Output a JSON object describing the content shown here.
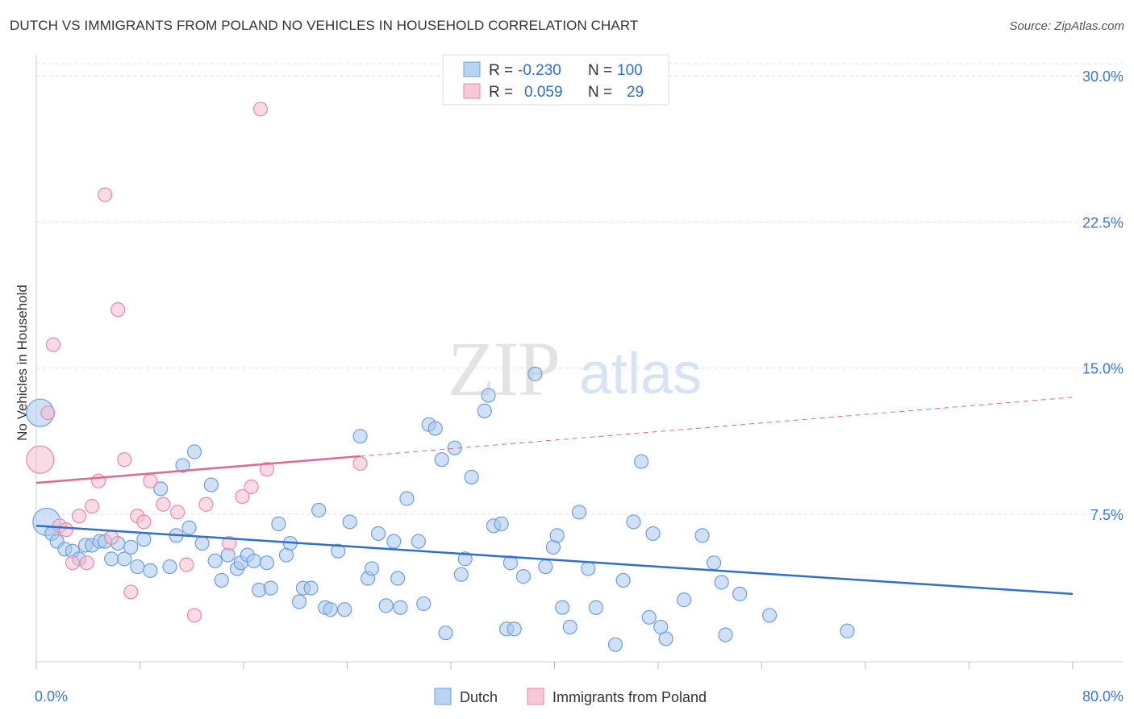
{
  "header": {
    "title": "DUTCH VS IMMIGRANTS FROM POLAND NO VEHICLES IN HOUSEHOLD CORRELATION CHART",
    "source": "Source: ZipAtlas.com"
  },
  "watermark": {
    "zip": "ZIP",
    "atlas": "atlas"
  },
  "legend_top": {
    "rows": [
      {
        "r_label": "R =",
        "r_value": "-0.230",
        "n_label": "N =",
        "n_value": "100"
      },
      {
        "r_label": "R =",
        "r_value": "0.059",
        "n_label": "N =",
        "n_value": "29"
      }
    ]
  },
  "legend_bottom": {
    "items": [
      "Dutch",
      "Immigrants from Poland"
    ]
  },
  "colors": {
    "dutch_fill": "#a9c8f0",
    "dutch_stroke": "#6e9fe0",
    "dutch_line": "#2f6fcc",
    "poland_fill": "#f6bccd",
    "poland_stroke": "#e98aa8",
    "poland_line": "#e0678f",
    "tick_text": "#3b78d0",
    "grid": "#dddddd"
  },
  "chart_data": {
    "type": "scatter",
    "title": "DUTCH VS IMMIGRANTS FROM POLAND NO VEHICLES IN HOUSEHOLD CORRELATION CHART",
    "xlabel": "",
    "ylabel": "No Vehicles in Household",
    "xlim": [
      0,
      80
    ],
    "ylim": [
      0,
      31.5
    ],
    "x_tick_labels": [
      "0.0%",
      "80.0%"
    ],
    "y_ticks": [
      7.5,
      15.0,
      22.5,
      30.0
    ],
    "y_tick_labels": [
      "7.5%",
      "15.0%",
      "22.5%",
      "30.0%"
    ],
    "grid": "horizontal dashed",
    "legend_placement": "top-center and bottom",
    "series": [
      {
        "name": "Dutch",
        "r": -0.23,
        "n": 100,
        "trend": {
          "x": [
            0,
            80
          ],
          "y": [
            6.9,
            3.4
          ]
        },
        "points": [
          {
            "x": 0.3,
            "y": 12.7,
            "s": "l"
          },
          {
            "x": 0.8,
            "y": 7.1,
            "s": "l"
          },
          {
            "x": 1.2,
            "y": 6.5
          },
          {
            "x": 1.6,
            "y": 6.1
          },
          {
            "x": 2.2,
            "y": 5.7
          },
          {
            "x": 2.8,
            "y": 5.6
          },
          {
            "x": 3.3,
            "y": 5.2
          },
          {
            "x": 3.8,
            "y": 5.9
          },
          {
            "x": 4.3,
            "y": 5.9
          },
          {
            "x": 4.9,
            "y": 6.1
          },
          {
            "x": 5.3,
            "y": 6.1
          },
          {
            "x": 5.8,
            "y": 5.2
          },
          {
            "x": 6.3,
            "y": 6.0
          },
          {
            "x": 6.8,
            "y": 5.2
          },
          {
            "x": 7.3,
            "y": 5.8
          },
          {
            "x": 7.8,
            "y": 4.8
          },
          {
            "x": 8.3,
            "y": 6.2
          },
          {
            "x": 8.8,
            "y": 4.6
          },
          {
            "x": 9.6,
            "y": 8.8
          },
          {
            "x": 10.3,
            "y": 4.8
          },
          {
            "x": 10.8,
            "y": 6.4
          },
          {
            "x": 11.3,
            "y": 10.0
          },
          {
            "x": 11.8,
            "y": 6.8
          },
          {
            "x": 12.2,
            "y": 10.7
          },
          {
            "x": 12.8,
            "y": 6.0
          },
          {
            "x": 13.5,
            "y": 9.0
          },
          {
            "x": 13.8,
            "y": 5.1
          },
          {
            "x": 14.3,
            "y": 4.1
          },
          {
            "x": 14.8,
            "y": 5.4
          },
          {
            "x": 15.5,
            "y": 4.7
          },
          {
            "x": 15.8,
            "y": 5.0
          },
          {
            "x": 16.3,
            "y": 5.4
          },
          {
            "x": 16.8,
            "y": 5.1
          },
          {
            "x": 17.2,
            "y": 3.6
          },
          {
            "x": 17.8,
            "y": 5.0
          },
          {
            "x": 18.1,
            "y": 3.7
          },
          {
            "x": 18.7,
            "y": 7.0
          },
          {
            "x": 19.3,
            "y": 5.4
          },
          {
            "x": 19.6,
            "y": 6.0
          },
          {
            "x": 20.3,
            "y": 3.0
          },
          {
            "x": 20.6,
            "y": 3.7
          },
          {
            "x": 21.2,
            "y": 3.7
          },
          {
            "x": 21.8,
            "y": 7.7
          },
          {
            "x": 22.3,
            "y": 2.7
          },
          {
            "x": 22.7,
            "y": 2.6
          },
          {
            "x": 23.3,
            "y": 5.6
          },
          {
            "x": 23.8,
            "y": 2.6
          },
          {
            "x": 24.2,
            "y": 7.1
          },
          {
            "x": 25.0,
            "y": 11.5
          },
          {
            "x": 25.6,
            "y": 4.2
          },
          {
            "x": 25.9,
            "y": 4.7
          },
          {
            "x": 26.4,
            "y": 6.5
          },
          {
            "x": 27.0,
            "y": 2.8
          },
          {
            "x": 27.6,
            "y": 6.1
          },
          {
            "x": 27.9,
            "y": 4.2
          },
          {
            "x": 28.1,
            "y": 2.7
          },
          {
            "x": 28.6,
            "y": 8.3
          },
          {
            "x": 29.5,
            "y": 6.1
          },
          {
            "x": 29.9,
            "y": 2.9
          },
          {
            "x": 30.3,
            "y": 12.1
          },
          {
            "x": 30.8,
            "y": 11.9
          },
          {
            "x": 31.3,
            "y": 10.3
          },
          {
            "x": 31.6,
            "y": 1.4
          },
          {
            "x": 32.3,
            "y": 10.9
          },
          {
            "x": 32.8,
            "y": 4.4
          },
          {
            "x": 33.1,
            "y": 5.2
          },
          {
            "x": 33.6,
            "y": 9.4
          },
          {
            "x": 34.6,
            "y": 12.8
          },
          {
            "x": 34.9,
            "y": 13.6
          },
          {
            "x": 35.3,
            "y": 6.9
          },
          {
            "x": 35.9,
            "y": 7.0
          },
          {
            "x": 36.3,
            "y": 1.6
          },
          {
            "x": 36.6,
            "y": 5.0
          },
          {
            "x": 36.9,
            "y": 1.6
          },
          {
            "x": 37.6,
            "y": 4.3
          },
          {
            "x": 38.5,
            "y": 14.7
          },
          {
            "x": 39.3,
            "y": 4.8
          },
          {
            "x": 39.9,
            "y": 5.8
          },
          {
            "x": 40.2,
            "y": 6.4
          },
          {
            "x": 40.6,
            "y": 2.7
          },
          {
            "x": 41.2,
            "y": 1.7
          },
          {
            "x": 41.9,
            "y": 7.6
          },
          {
            "x": 42.6,
            "y": 4.7
          },
          {
            "x": 43.2,
            "y": 2.7
          },
          {
            "x": 44.7,
            "y": 0.8
          },
          {
            "x": 45.3,
            "y": 4.1
          },
          {
            "x": 46.1,
            "y": 7.1
          },
          {
            "x": 46.7,
            "y": 10.2
          },
          {
            "x": 47.3,
            "y": 2.2
          },
          {
            "x": 47.6,
            "y": 6.5
          },
          {
            "x": 48.2,
            "y": 1.7
          },
          {
            "x": 48.6,
            "y": 1.1
          },
          {
            "x": 50.0,
            "y": 3.1
          },
          {
            "x": 51.4,
            "y": 6.4
          },
          {
            "x": 52.3,
            "y": 5.0
          },
          {
            "x": 52.9,
            "y": 4.0
          },
          {
            "x": 53.2,
            "y": 1.3
          },
          {
            "x": 54.3,
            "y": 3.4
          },
          {
            "x": 56.6,
            "y": 2.3
          },
          {
            "x": 62.6,
            "y": 1.5
          }
        ]
      },
      {
        "name": "Immigrants from Poland",
        "r": 0.059,
        "n": 29,
        "trend": {
          "x": [
            0,
            80
          ],
          "y": [
            9.1,
            13.5
          ],
          "solid_until": 25
        },
        "points": [
          {
            "x": 0.3,
            "y": 10.3,
            "s": "l"
          },
          {
            "x": 0.9,
            "y": 12.7
          },
          {
            "x": 1.3,
            "y": 16.2
          },
          {
            "x": 1.8,
            "y": 6.9
          },
          {
            "x": 2.3,
            "y": 6.7
          },
          {
            "x": 2.8,
            "y": 5.0
          },
          {
            "x": 3.3,
            "y": 7.4
          },
          {
            "x": 3.9,
            "y": 5.0
          },
          {
            "x": 4.3,
            "y": 7.9
          },
          {
            "x": 4.8,
            "y": 9.2
          },
          {
            "x": 5.3,
            "y": 23.9
          },
          {
            "x": 5.8,
            "y": 6.3
          },
          {
            "x": 6.3,
            "y": 18.0
          },
          {
            "x": 6.8,
            "y": 10.3
          },
          {
            "x": 7.3,
            "y": 3.5
          },
          {
            "x": 7.8,
            "y": 7.4
          },
          {
            "x": 8.3,
            "y": 7.1
          },
          {
            "x": 8.8,
            "y": 9.2
          },
          {
            "x": 9.8,
            "y": 8.0
          },
          {
            "x": 10.9,
            "y": 7.6
          },
          {
            "x": 11.6,
            "y": 4.9
          },
          {
            "x": 12.2,
            "y": 2.3
          },
          {
            "x": 13.1,
            "y": 8.0
          },
          {
            "x": 14.9,
            "y": 6.0
          },
          {
            "x": 15.9,
            "y": 8.4
          },
          {
            "x": 16.6,
            "y": 8.9
          },
          {
            "x": 17.3,
            "y": 28.3
          },
          {
            "x": 17.8,
            "y": 9.8
          },
          {
            "x": 25.0,
            "y": 10.1
          }
        ]
      }
    ]
  }
}
